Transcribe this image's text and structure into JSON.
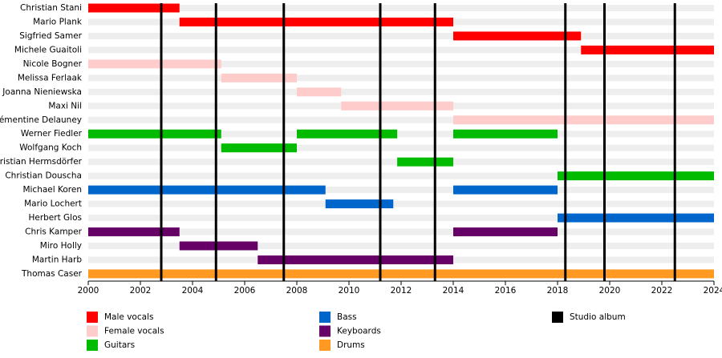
{
  "chart_data": {
    "type": "timeline",
    "categories": [
      "Christian Stani",
      "Mario Plank",
      "Sigfried Samer",
      "Michele Guaitoli",
      "Nicole Bogner",
      "Melissa Ferlaak",
      "Joanna Nieniewska",
      "Maxi Nil",
      "Clémentine Delauney",
      "Werner Fiedler",
      "Wolfgang Koch",
      "Christian Hermsdörfer",
      "Christian Douscha",
      "Michael Koren",
      "Mario Lochert",
      "Herbert Glos",
      "Chris Kamper",
      "Miro Holly",
      "Martin Harb",
      "Thomas Caser"
    ],
    "xlim": [
      2000,
      2024
    ],
    "xticks": [
      2000,
      2002,
      2004,
      2006,
      2008,
      2010,
      2012,
      2014,
      2016,
      2018,
      2020,
      2022,
      2024
    ],
    "series": [
      {
        "name": "Male vocals",
        "color": "#ff0000",
        "bars": [
          {
            "member": "Christian Stani",
            "start": 2000,
            "end": 2003.5
          },
          {
            "member": "Mario Plank",
            "start": 2003.5,
            "end": 2014
          },
          {
            "member": "Sigfried Samer",
            "start": 2014,
            "end": 2018.9
          },
          {
            "member": "Michele Guaitoli",
            "start": 2018.9,
            "end": 2024
          }
        ]
      },
      {
        "name": "Female vocals",
        "color": "#ffcccc",
        "bars": [
          {
            "member": "Nicole Bogner",
            "start": 2000,
            "end": 2005.1
          },
          {
            "member": "Melissa Ferlaak",
            "start": 2005.1,
            "end": 2008
          },
          {
            "member": "Joanna Nieniewska",
            "start": 2008,
            "end": 2009.7
          },
          {
            "member": "Maxi Nil",
            "start": 2009.7,
            "end": 2014
          },
          {
            "member": "Clémentine Delauney",
            "start": 2014,
            "end": 2024
          }
        ]
      },
      {
        "name": "Guitars",
        "color": "#00bb00",
        "bars": [
          {
            "member": "Werner Fiedler",
            "start": 2000,
            "end": 2005.1
          },
          {
            "member": "Werner Fiedler",
            "start": 2008,
            "end": 2011.85
          },
          {
            "member": "Werner Fiedler",
            "start": 2014,
            "end": 2018
          },
          {
            "member": "Wolfgang Koch",
            "start": 2005.1,
            "end": 2008
          },
          {
            "member": "Christian Hermsdörfer",
            "start": 2011.85,
            "end": 2014
          },
          {
            "member": "Christian Douscha",
            "start": 2018,
            "end": 2024
          }
        ]
      },
      {
        "name": "Bass",
        "color": "#0066cc",
        "bars": [
          {
            "member": "Michael Koren",
            "start": 2000,
            "end": 2009.1
          },
          {
            "member": "Michael Koren",
            "start": 2014,
            "end": 2018
          },
          {
            "member": "Mario Lochert",
            "start": 2009.1,
            "end": 2011.7
          },
          {
            "member": "Herbert Glos",
            "start": 2018,
            "end": 2024
          }
        ]
      },
      {
        "name": "Keyboards",
        "color": "#660066",
        "bars": [
          {
            "member": "Chris Kamper",
            "start": 2000,
            "end": 2003.5
          },
          {
            "member": "Chris Kamper",
            "start": 2014,
            "end": 2018
          },
          {
            "member": "Miro Holly",
            "start": 2003.5,
            "end": 2006.5
          },
          {
            "member": "Martin Harb",
            "start": 2006.5,
            "end": 2014
          }
        ]
      },
      {
        "name": "Drums",
        "color": "#ff9922",
        "bars": [
          {
            "member": "Thomas Caser",
            "start": 2000,
            "end": 2024
          }
        ]
      },
      {
        "name": "Studio album",
        "color": "#000000",
        "lines": [
          2002.8,
          2004.9,
          2007.5,
          2011.2,
          2013.3,
          2018.3,
          2019.8,
          2022.5
        ]
      }
    ]
  }
}
